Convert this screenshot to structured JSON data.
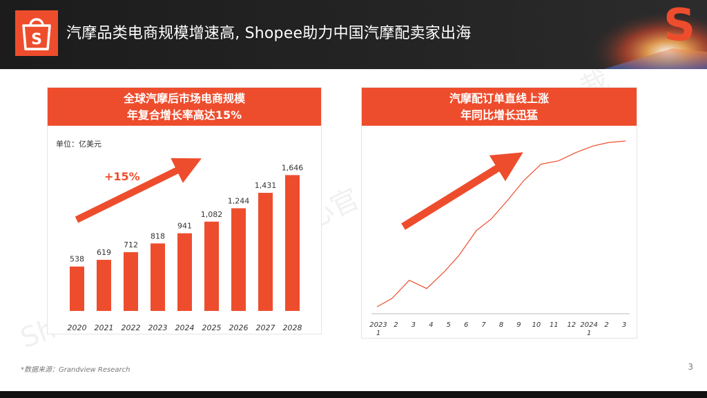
{
  "header": {
    "title": "汽摩品类电商规模增速高, Shopee助力中国汽摩配卖家出海",
    "brand_color": "#ee4d2d",
    "logo_icon": "shopee-bag-icon"
  },
  "left_panel": {
    "title_line1": "全球汽摩后市场电商规模",
    "title_line2": "年复合增长率高达15%",
    "unit": "单位：亿美元",
    "growth_label": "+15%"
  },
  "right_panel": {
    "title_line1": "汽摩配订单直线上涨",
    "title_line2": "年同比增长迅猛"
  },
  "chart_data": [
    {
      "type": "bar",
      "title": "全球汽摩后市场电商规模 年复合增长率高达15%",
      "ylabel": "单位：亿美元",
      "categories": [
        "2020",
        "2021",
        "2022",
        "2023",
        "2024",
        "2025",
        "2026",
        "2027",
        "2028"
      ],
      "values": [
        538,
        619,
        712,
        818,
        941,
        1082,
        1244,
        1431,
        1646
      ],
      "value_labels": [
        "538",
        "619",
        "712",
        "818",
        "941",
        "1,082",
        "1,244",
        "1,431",
        "1,646"
      ],
      "annotation": "+15%",
      "color": "#ee4d2d",
      "ylim": [
        0,
        1800
      ]
    },
    {
      "type": "line",
      "title": "汽摩配订单直线上涨 年同比增长迅猛",
      "x": [
        "2023-1",
        "2",
        "3",
        "4",
        "5",
        "6",
        "7",
        "8",
        "9",
        "10",
        "11",
        "12",
        "2024-1",
        "2",
        "3"
      ],
      "tick_labels": [
        {
          "top": "2023",
          "bottom": "1"
        },
        {
          "top": "2",
          "bottom": ""
        },
        {
          "top": "3",
          "bottom": ""
        },
        {
          "top": "4",
          "bottom": ""
        },
        {
          "top": "5",
          "bottom": ""
        },
        {
          "top": "6",
          "bottom": ""
        },
        {
          "top": "7",
          "bottom": ""
        },
        {
          "top": "8",
          "bottom": ""
        },
        {
          "top": "9",
          "bottom": ""
        },
        {
          "top": "10",
          "bottom": ""
        },
        {
          "top": "11",
          "bottom": ""
        },
        {
          "top": "12",
          "bottom": ""
        },
        {
          "top": "2024",
          "bottom": "1"
        },
        {
          "top": "2",
          "bottom": ""
        },
        {
          "top": "3",
          "bottom": ""
        }
      ],
      "points": [
        {
          "x": 0.0,
          "y": 0.0
        },
        {
          "x": 0.06,
          "y": 0.05
        },
        {
          "x": 0.13,
          "y": 0.16
        },
        {
          "x": 0.2,
          "y": 0.11
        },
        {
          "x": 0.27,
          "y": 0.21
        },
        {
          "x": 0.33,
          "y": 0.31
        },
        {
          "x": 0.4,
          "y": 0.46
        },
        {
          "x": 0.46,
          "y": 0.53
        },
        {
          "x": 0.53,
          "y": 0.65
        },
        {
          "x": 0.59,
          "y": 0.76
        },
        {
          "x": 0.66,
          "y": 0.86
        },
        {
          "x": 0.73,
          "y": 0.88
        },
        {
          "x": 0.8,
          "y": 0.93
        },
        {
          "x": 0.87,
          "y": 0.97
        },
        {
          "x": 0.93,
          "y": 0.99
        },
        {
          "x": 1.0,
          "y": 1.0
        }
      ],
      "color": "#ee4d2d"
    }
  ],
  "source": "*数据来源：Grandview Research",
  "page_number": "3"
}
